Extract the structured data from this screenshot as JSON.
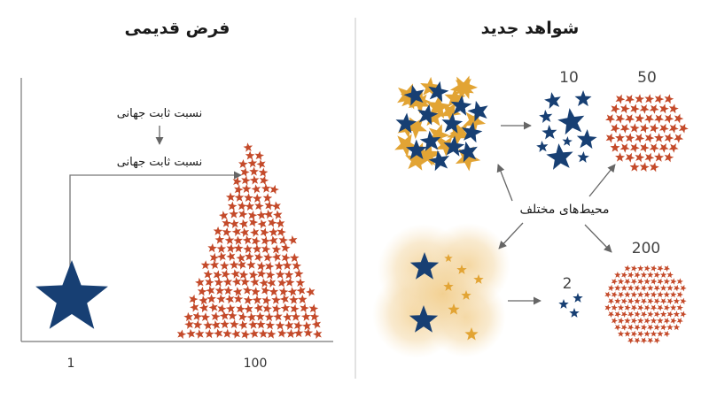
{
  "left_panel": {
    "title": "فرض قدیمی",
    "label_top": "نسبت ثابت جهانی",
    "label_bottom": "نسبت ثابت جهانی",
    "axis_label_left": "1",
    "axis_label_right": "100"
  },
  "right_panel": {
    "title": "شواهد جدید",
    "center_label": "محیط‌های مختلف",
    "count_10": "10",
    "count_50": "50",
    "count_200": "200",
    "count_2": "2"
  },
  "colors": {
    "navy": "#173f73",
    "gold": "#e2a434",
    "rust": "#c44a2a",
    "haze": "#f1cf8f",
    "line": "#666666",
    "divider": "#bdbdbd",
    "text": "#1a1a1a",
    "count_text": "#444444"
  }
}
